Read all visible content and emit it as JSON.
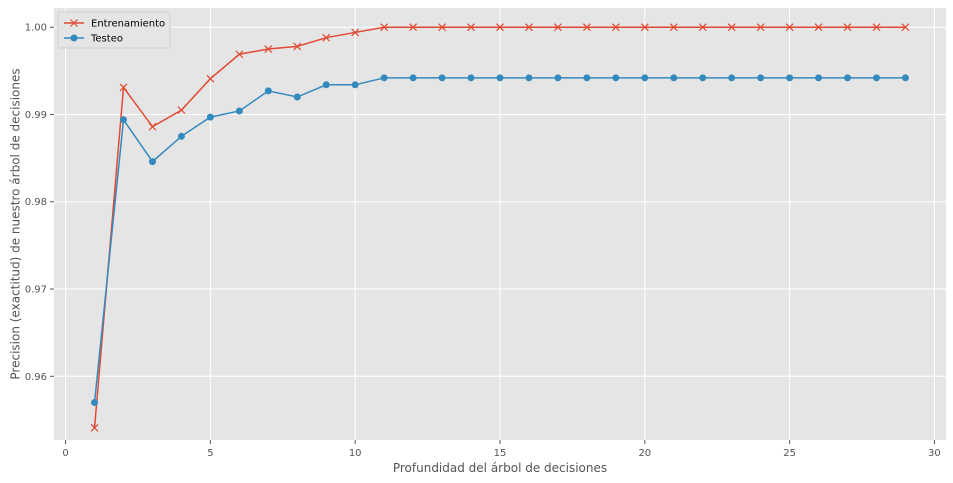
{
  "chart_data": {
    "type": "line",
    "xlabel": "Profundidad del árbol de decisiones",
    "ylabel": "Precision (exactitud) de nuestro árbol de decisiones",
    "xlim": [
      -0.4,
      30.4
    ],
    "ylim": [
      0.9527,
      1.0022
    ],
    "x_ticks": [
      0,
      5,
      10,
      15,
      20,
      25,
      30
    ],
    "y_ticks": [
      0.96,
      0.97,
      0.98,
      0.99,
      1.0
    ],
    "x_tick_labels": [
      "0",
      "5",
      "10",
      "15",
      "20",
      "25",
      "30"
    ],
    "y_tick_labels": [
      "0.96",
      "0.97",
      "0.98",
      "0.99",
      "1.00"
    ],
    "grid": true,
    "legend_position": "top-left",
    "x": [
      1,
      2,
      3,
      4,
      5,
      6,
      7,
      8,
      9,
      10,
      11,
      12,
      13,
      14,
      15,
      16,
      17,
      18,
      19,
      20,
      21,
      22,
      23,
      24,
      25,
      26,
      27,
      28,
      29
    ],
    "series": [
      {
        "name": "Entrenamiento",
        "marker": "x",
        "color": "#E24A33",
        "values": [
          0.9541,
          0.9931,
          0.9886,
          0.9905,
          0.9941,
          0.9969,
          0.9975,
          0.9978,
          0.9988,
          0.9994,
          1.0,
          1.0,
          1.0,
          1.0,
          1.0,
          1.0,
          1.0,
          1.0,
          1.0,
          1.0,
          1.0,
          1.0,
          1.0,
          1.0,
          1.0,
          1.0,
          1.0,
          1.0,
          1.0
        ]
      },
      {
        "name": "Testeo",
        "marker": "o",
        "color": "#348ABD",
        "values": [
          0.957,
          0.9894,
          0.9846,
          0.9875,
          0.9897,
          0.9904,
          0.9927,
          0.992,
          0.9934,
          0.9934,
          0.9942,
          0.9942,
          0.9942,
          0.9942,
          0.9942,
          0.9942,
          0.9942,
          0.9942,
          0.9942,
          0.9942,
          0.9942,
          0.9942,
          0.9942,
          0.9942,
          0.9942,
          0.9942,
          0.9942,
          0.9942,
          0.9942
        ]
      }
    ]
  },
  "style": {
    "plot_background": "#E5E5E5",
    "grid_color": "#FFFFFF",
    "text_color": "#555555"
  }
}
